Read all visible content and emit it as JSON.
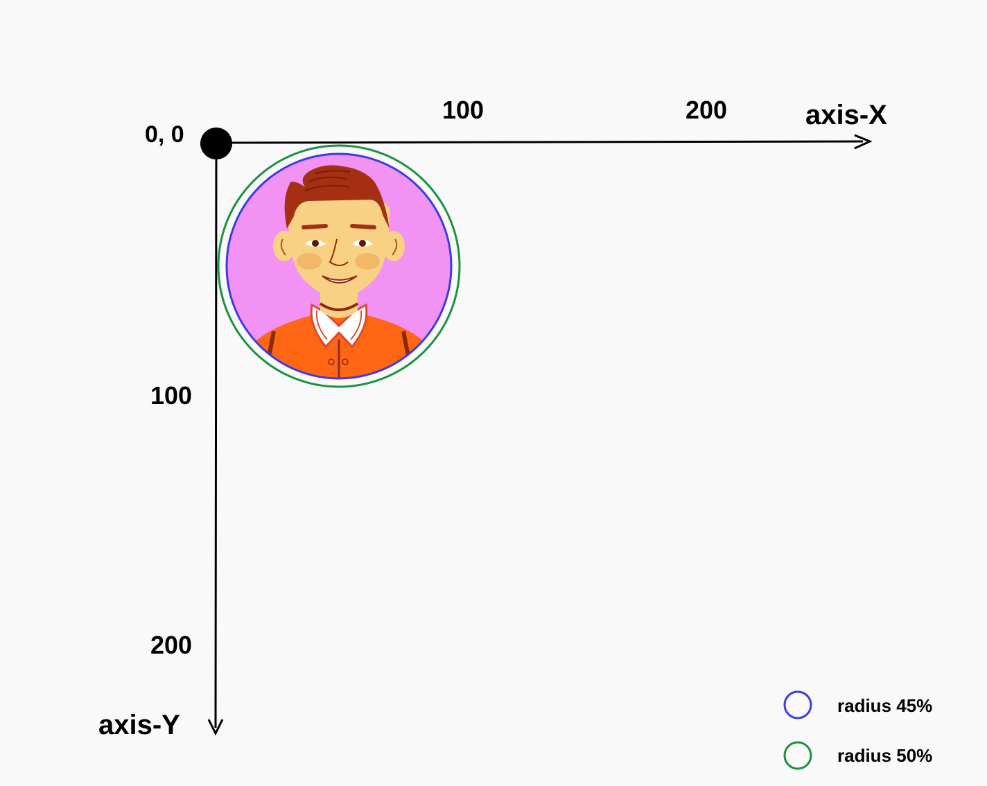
{
  "origin_label": "0, 0",
  "x_axis": {
    "name": "axis-X",
    "ticks": [
      "100",
      "200"
    ]
  },
  "y_axis": {
    "name": "axis-Y",
    "ticks": [
      "100",
      "200"
    ]
  },
  "legend": [
    {
      "label": "radius 45%",
      "color": "#3a3ae6"
    },
    {
      "label": "radius 50%",
      "color": "#1a9140"
    }
  ],
  "avatar": {
    "background_color": "#f293f3",
    "skin_color": "#f8d185",
    "hair_color": "#a42f12",
    "jacket_color": "#fe6613"
  }
}
